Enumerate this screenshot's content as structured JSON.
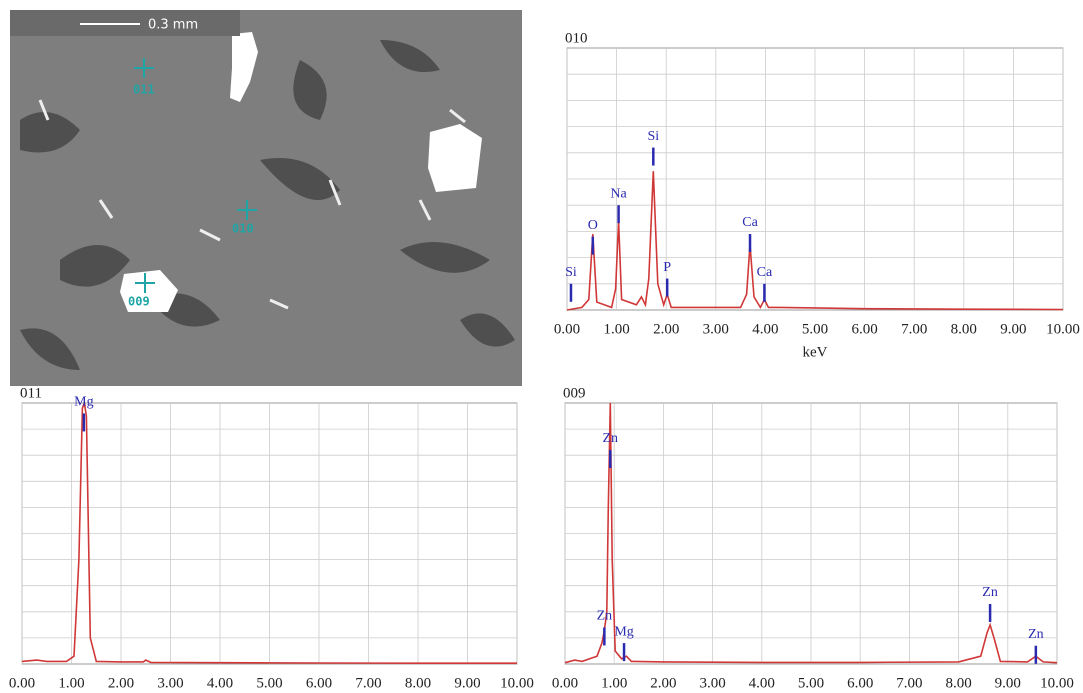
{
  "image": {
    "scale_bar": "0.3 mm",
    "points": [
      {
        "label": "011"
      },
      {
        "label": "010"
      },
      {
        "label": "009"
      }
    ]
  },
  "chart_data": [
    {
      "type": "line",
      "title": "010",
      "xlabel": "keV",
      "color": "#d03838",
      "x": [
        0,
        0.3,
        0.44,
        0.52,
        0.6,
        0.9,
        0.98,
        1.04,
        1.1,
        1.4,
        1.5,
        1.58,
        1.65,
        1.74,
        1.83,
        1.95,
        2.02,
        2.1,
        2.3,
        3.5,
        3.62,
        3.69,
        3.77,
        3.9,
        3.98,
        4.06,
        4.3,
        6,
        8,
        10
      ],
      "values": [
        0,
        1,
        4,
        29,
        3,
        1,
        8,
        34,
        4,
        2,
        5,
        2,
        12,
        53,
        10,
        2,
        6,
        1,
        1,
        1,
        6,
        25,
        5,
        1,
        4,
        1,
        1,
        0.5,
        0.3,
        0.2
      ],
      "xlim": [
        0,
        10
      ],
      "ylim": [
        0,
        100
      ],
      "xticks": [
        {
          "value": 0,
          "label": "0.00"
        },
        {
          "value": 1,
          "label": "1.00"
        },
        {
          "value": 2,
          "label": "2.00"
        },
        {
          "value": 3,
          "label": "3.00"
        },
        {
          "value": 4,
          "label": "4.00"
        },
        {
          "value": 5,
          "label": "5.00"
        },
        {
          "value": 6,
          "label": "6.00"
        },
        {
          "value": 7,
          "label": "7.00"
        },
        {
          "value": 8,
          "label": "8.00"
        },
        {
          "value": 9,
          "label": "9.00"
        },
        {
          "value": 10,
          "label": "10.00"
        }
      ],
      "annotation_color": "#2a2ab0",
      "annotations": [
        {
          "label": "Si",
          "x": 0.08,
          "y": 10
        },
        {
          "label": "O",
          "x": 0.52,
          "y": 28
        },
        {
          "label": "Na",
          "x": 1.04,
          "y": 40
        },
        {
          "label": "Si",
          "x": 1.74,
          "y": 62
        },
        {
          "label": "P",
          "x": 2.02,
          "y": 12
        },
        {
          "label": "Ca",
          "x": 3.69,
          "y": 29
        },
        {
          "label": "Ca",
          "x": 3.98,
          "y": 10
        }
      ]
    },
    {
      "type": "line",
      "title": "011",
      "color": "#d03838",
      "x": [
        0,
        0.3,
        0.5,
        0.9,
        1.05,
        1.15,
        1.22,
        1.26,
        1.3,
        1.38,
        1.5,
        2.0,
        2.45,
        2.5,
        2.6,
        4,
        6,
        8,
        10
      ],
      "values": [
        1,
        1.5,
        1,
        1,
        3,
        40,
        98,
        100,
        95,
        10,
        1,
        0.8,
        0.8,
        1.5,
        0.6,
        0.5,
        0.4,
        0.3,
        0.3
      ],
      "xlim": [
        0,
        10
      ],
      "ylim": [
        0,
        100
      ],
      "xticks": [
        {
          "value": 0,
          "label": "0.00"
        },
        {
          "value": 1,
          "label": "1.00"
        },
        {
          "value": 2,
          "label": "2.00"
        },
        {
          "value": 3,
          "label": "3.00"
        },
        {
          "value": 4,
          "label": "4.00"
        },
        {
          "value": 5,
          "label": "5.00"
        },
        {
          "value": 6,
          "label": "6.00"
        },
        {
          "value": 7,
          "label": "7.00"
        },
        {
          "value": 8,
          "label": "8.00"
        },
        {
          "value": 9,
          "label": "9.00"
        },
        {
          "value": 10,
          "label": "10.00"
        }
      ],
      "annotation_color": "#2a2ab0",
      "annotations": [
        {
          "label": "Mg",
          "x": 1.25,
          "y": 96
        }
      ]
    },
    {
      "type": "line",
      "title": "009",
      "color": "#d03838",
      "x": [
        0,
        0.2,
        0.35,
        0.5,
        0.65,
        0.75,
        0.8,
        0.85,
        0.88,
        0.92,
        0.96,
        1.02,
        1.15,
        1.25,
        1.35,
        2,
        4,
        6,
        8,
        8.45,
        8.58,
        8.64,
        8.72,
        8.85,
        9.4,
        9.57,
        9.72,
        10
      ],
      "values": [
        0.5,
        1.5,
        1,
        2,
        3,
        8,
        13,
        20,
        60,
        100,
        40,
        5,
        2,
        3,
        1,
        0.8,
        0.6,
        0.6,
        0.8,
        3,
        12,
        15,
        10,
        1,
        0.8,
        3,
        0.8,
        0.5
      ],
      "xlim": [
        0,
        10
      ],
      "ylim": [
        0,
        100
      ],
      "xticks": [
        {
          "value": 0,
          "label": "0.00"
        },
        {
          "value": 1,
          "label": "1.00"
        },
        {
          "value": 2,
          "label": "2.00"
        },
        {
          "value": 3,
          "label": "3.00"
        },
        {
          "value": 4,
          "label": "4.00"
        },
        {
          "value": 5,
          "label": "5.00"
        },
        {
          "value": 6,
          "label": "6.00"
        },
        {
          "value": 7,
          "label": "7.00"
        },
        {
          "value": 8,
          "label": "8.00"
        },
        {
          "value": 9,
          "label": "9.00"
        },
        {
          "value": 10,
          "label": "10.00"
        }
      ],
      "annotation_color": "#2a2ab0",
      "annotations": [
        {
          "label": "Zn",
          "x": 0.92,
          "y": 82
        },
        {
          "label": "Zn",
          "x": 0.8,
          "y": 14
        },
        {
          "label": "Mg",
          "x": 1.2,
          "y": 8
        },
        {
          "label": "Zn",
          "x": 8.64,
          "y": 23
        },
        {
          "label": "Zn",
          "x": 9.57,
          "y": 7
        }
      ]
    }
  ]
}
